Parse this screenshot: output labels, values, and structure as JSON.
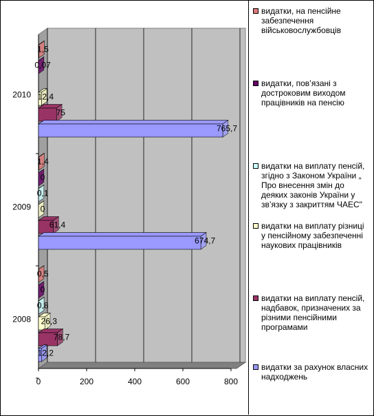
{
  "chart_data": {
    "type": "bar3d_horizontal",
    "categories": [
      "2008",
      "2009",
      "2010"
    ],
    "series": [
      {
        "name": "видатки, на пенсійне забезпечення військовослужбовців",
        "color": "#e07878",
        "values": [
          0.5,
          1.4,
          1.5
        ],
        "value_labels": [
          "0,5",
          "1,4",
          "1,5"
        ]
      },
      {
        "name": "видатки, пов’язані з достроковим виходом працівників на пенсію",
        "color": "#660066",
        "values": [
          0,
          0,
          0.07
        ],
        "value_labels": [
          "0",
          "0",
          "0,07"
        ]
      },
      {
        "name": "видатки на виплату пенсій, згідно з Законом України „ Про внесення змін до деяких законів України у зв’язку з закриттям ЧАЕС\"",
        "color": "#ccffff",
        "values": [
          0.8,
          0.1,
          null
        ],
        "value_labels": [
          "0,8",
          "0,1",
          null
        ]
      },
      {
        "name": "видатки на виплату різниці у пенсійному забезпеченні наукових працівників",
        "color": "#ffffcc",
        "values": [
          26.3,
          0,
          12.4
        ],
        "value_labels": [
          "26,3",
          "0",
          "12,4"
        ]
      },
      {
        "name": "видатки на виплату пенсій, надбавок, призначених за різними пенсійними програмами",
        "color": "#993366",
        "values": [
          78.7,
          61.4,
          75
        ],
        "value_labels": [
          "78,7",
          "61,4",
          "75"
        ]
      },
      {
        "name": "видатки за рахунок власних надходжень",
        "color": "#9999ff",
        "values": [
          12.2,
          674.7,
          765.7
        ],
        "value_labels": [
          "12,2",
          "674,7",
          "765,7"
        ]
      }
    ],
    "xlim": [
      0,
      800
    ],
    "xticks": [
      0,
      200,
      400,
      600,
      800
    ],
    "grid": true
  }
}
